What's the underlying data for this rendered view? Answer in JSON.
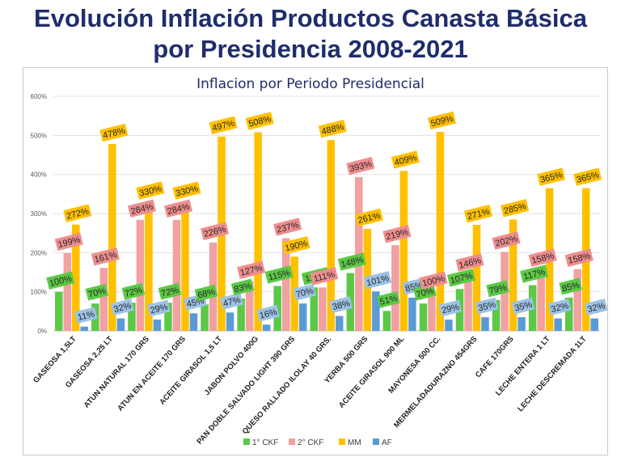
{
  "page": {
    "title_line1": "Evolución Inflación Productos Canasta Básica",
    "title_line2": "por Presidencia 2008-2021"
  },
  "chart_data": {
    "type": "bar",
    "title": "Inflacion por Periodo Presidencial",
    "xlabel": "",
    "ylabel": "",
    "ylim": [
      0,
      600
    ],
    "yticks": [
      "0%",
      "100%",
      "200%",
      "300%",
      "400%",
      "500%",
      "600%"
    ],
    "grid": true,
    "legend_position": "bottom",
    "categories": [
      "GASEOSA 1,5LT",
      "GASEOSA 2,25 LT",
      "ATUN NATURAL 170 GRS",
      "ATUN EN ACEITE 170 GRS",
      "ACEITE GIRASOL 1,5 LT",
      "JABON POLVO 400G",
      "PAN DOBLE SALVADO LIGHT 390 GRS",
      "QUESO RALLADO ILOLAY 40 GRS.",
      "YERBA 500 GRS",
      "ACEITE GIRASOL 900 ML",
      "MAYONESA 500 CC.",
      "MERMELADADURAZNO 454GRS",
      "CAFE 170GRS",
      "LECHE ENTERA 1 LT",
      "LECHE DESCREMADA 1LT"
    ],
    "series": [
      {
        "name": "1° CKF",
        "color": "#5cc846",
        "label_bg": "#5cc846",
        "values": [
          100,
          70,
          72,
          72,
          68,
          83,
          115,
          111,
          148,
          51,
          70,
          107,
          79,
          117,
          85
        ],
        "labels": [
          "100%",
          "70%",
          "72%",
          "72%",
          "68%",
          "83%",
          "115%",
          "111%",
          "148%",
          "51%",
          "70%",
          "107%",
          "79%",
          "117%",
          "85%"
        ]
      },
      {
        "name": "2° CKF",
        "color": "#f2a0a0",
        "label_bg": "#ee8e8e",
        "values": [
          199,
          161,
          284,
          284,
          226,
          127,
          237,
          111,
          393,
          219,
          100,
          146,
          202,
          158,
          158
        ],
        "labels": [
          "199%",
          "161%",
          "284%",
          "284%",
          "226%",
          "127%",
          "237%",
          "111%",
          "393%",
          "219%",
          "100%",
          "146%",
          "202%",
          "158%",
          "158%"
        ]
      },
      {
        "name": "MM",
        "color": "#ffc000",
        "label_bg": "#ffc000",
        "values": [
          272,
          478,
          330,
          330,
          497,
          508,
          190,
          488,
          261,
          409,
          509,
          271,
          285,
          365,
          365
        ],
        "labels": [
          "272%",
          "478%",
          "330%",
          "330%",
          "497%",
          "508%",
          "190%",
          "488%",
          "261%",
          "409%",
          "509%",
          "271%",
          "285%",
          "365%",
          "365%"
        ]
      },
      {
        "name": "AF",
        "color": "#5b9bd5",
        "label_bg": "#9dc3e6",
        "values": [
          11,
          32,
          29,
          45,
          47,
          16,
          70,
          38,
          101,
          85,
          29,
          35,
          35,
          32,
          32
        ],
        "labels": [
          "11%",
          "32%",
          "29%",
          "45%",
          "47%",
          "16%",
          "70%",
          "38%",
          "101%",
          "85%",
          "29%",
          "35%",
          "35%",
          "32%",
          "32%"
        ]
      }
    ]
  }
}
